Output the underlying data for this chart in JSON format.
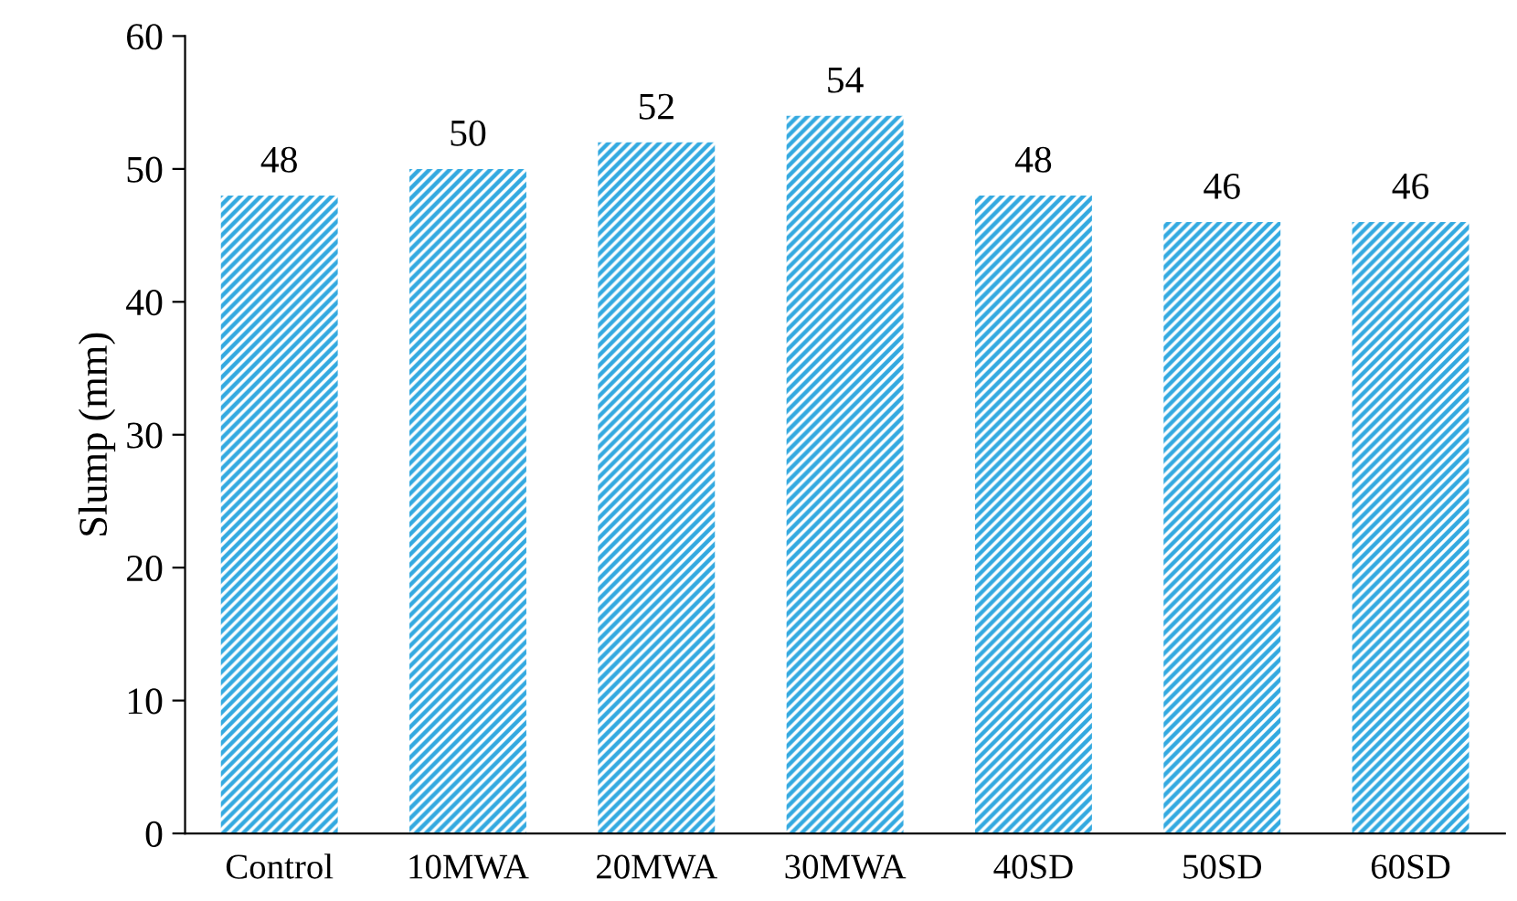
{
  "chart_data": {
    "type": "bar",
    "ylabel": "Slump (mm)",
    "categories": [
      "Control",
      "10MWA",
      "20MWA",
      "30MWA",
      "40SD",
      "50SD",
      "60SD"
    ],
    "values": [
      48,
      50,
      52,
      54,
      48,
      46,
      46
    ],
    "color": "#33a9e0",
    "ylim": [
      0,
      60
    ],
    "yticks": [
      0,
      10,
      20,
      30,
      40,
      50,
      60
    ],
    "grid": false,
    "data_labels": true
  }
}
